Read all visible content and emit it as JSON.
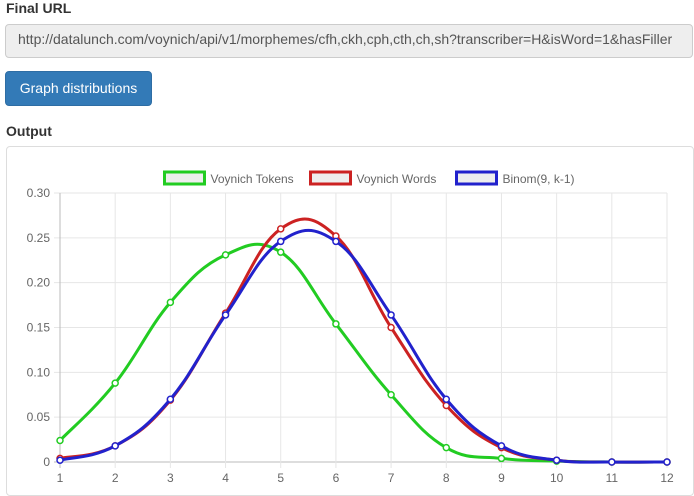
{
  "labels": {
    "final_url": "Final URL",
    "output": "Output"
  },
  "url_field": {
    "value": "http://datalunch.com/voynich/api/v1/morphemes/cfh,ckh,cph,cth,ch,sh?transcriber=H&isWord=1&hasFiller"
  },
  "buttons": {
    "graph": "Graph distributions"
  },
  "colors": {
    "tokens": "#22cc22",
    "words": "#cc2222",
    "binom": "#2222cc",
    "button": "#337ab7"
  },
  "chart_data": {
    "type": "line",
    "x": [
      1,
      2,
      3,
      4,
      5,
      6,
      7,
      8,
      9,
      10,
      11,
      12
    ],
    "ylim": [
      0,
      0.3
    ],
    "yticks": [
      "0",
      "0.05",
      "0.10",
      "0.15",
      "0.20",
      "0.25",
      "0.30"
    ],
    "xticks": [
      "1",
      "2",
      "3",
      "4",
      "5",
      "6",
      "7",
      "8",
      "9",
      "10",
      "11",
      "12"
    ],
    "grid": true,
    "legend_position": "top",
    "series": [
      {
        "name": "Voynich Tokens",
        "color": "#22cc22",
        "values": [
          0.024,
          0.088,
          0.178,
          0.231,
          0.234,
          0.154,
          0.075,
          0.016,
          0.004,
          0.001,
          0.0,
          0.0
        ]
      },
      {
        "name": "Voynich Words",
        "color": "#cc2222",
        "values": [
          0.004,
          0.018,
          0.069,
          0.166,
          0.26,
          0.252,
          0.15,
          0.063,
          0.016,
          0.002,
          0.0,
          0.0
        ]
      },
      {
        "name": "Binom(9, k-1)",
        "color": "#2222cc",
        "values": [
          0.002,
          0.018,
          0.07,
          0.164,
          0.246,
          0.246,
          0.164,
          0.07,
          0.018,
          0.002,
          0.0,
          0.0
        ]
      }
    ]
  }
}
